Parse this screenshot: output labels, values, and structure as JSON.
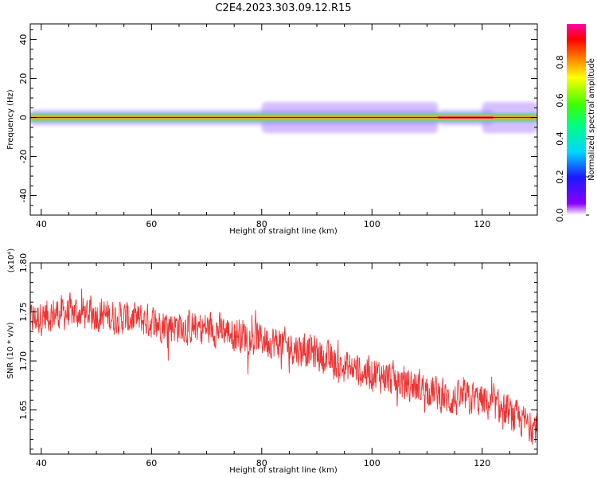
{
  "title": "C2E4.2023.303.09.12.R15",
  "chart_data": [
    {
      "type": "heatmap",
      "title": "C2E4.2023.303.09.12.R15",
      "xlabel": "Height of straight line (km)",
      "ylabel": "Frequency (Hz)",
      "xlim": [
        38,
        130
      ],
      "ylim": [
        -50,
        48
      ],
      "x_ticks": [
        "40",
        "60",
        "80",
        "100",
        "120"
      ],
      "y_ticks": [
        "40",
        "20",
        "0",
        "-20",
        "-40"
      ],
      "x_tick_values": [
        40,
        60,
        80,
        100,
        120
      ],
      "y_tick_values": [
        40,
        20,
        0,
        -20,
        -40
      ],
      "colorbar": {
        "label": "Normalized spectral amplitude",
        "range": [
          0,
          1
        ],
        "ticks": [
          "0.0",
          "0.2",
          "0.4",
          "0.6",
          "0.8"
        ],
        "tick_values": [
          0.0,
          0.2,
          0.4,
          0.6,
          0.8
        ],
        "colormap": "hsv-rainbow"
      },
      "ridge_frequency_hz": 0,
      "segments": [
        {
          "x": [
            38,
            112
          ],
          "intensity": 0.85,
          "halo_hz": 2
        },
        {
          "x": [
            80,
            112
          ],
          "intensity": 0.5,
          "halo_hz": 4
        },
        {
          "x": [
            112,
            122
          ],
          "intensity": 0.95,
          "halo_hz": 2
        },
        {
          "x": [
            120,
            130
          ],
          "intensity": 0.5,
          "halo_hz": 4
        }
      ],
      "grid": false
    },
    {
      "type": "line",
      "xlabel": "Height of straight line (km)",
      "ylabel": "SNR (10 * v/v)",
      "y_multiplier": "(x10⁴)",
      "xlim": [
        38,
        130
      ],
      "ylim": [
        1.605,
        1.8
      ],
      "x_ticks": [
        "40",
        "60",
        "80",
        "100",
        "120"
      ],
      "y_ticks": [
        "1.80",
        "1.75",
        "1.70",
        "1.65"
      ],
      "x_tick_values": [
        40,
        60,
        80,
        100,
        120
      ],
      "y_tick_values": [
        1.8,
        1.75,
        1.7,
        1.65
      ],
      "series": [
        {
          "color": "#ee3333",
          "x": [
            38,
            42,
            46,
            50,
            54,
            58,
            62,
            66,
            70,
            74,
            78,
            82,
            86,
            90,
            94,
            98,
            102,
            106,
            110,
            114,
            118,
            122,
            126,
            130
          ],
          "values": [
            1.742,
            1.748,
            1.75,
            1.748,
            1.744,
            1.742,
            1.738,
            1.735,
            1.733,
            1.73,
            1.725,
            1.72,
            1.713,
            1.708,
            1.695,
            1.69,
            1.685,
            1.677,
            1.672,
            1.66,
            1.662,
            1.655,
            1.642,
            1.632
          ],
          "noise_amplitude": 0.018
        }
      ],
      "grid": false
    }
  ]
}
